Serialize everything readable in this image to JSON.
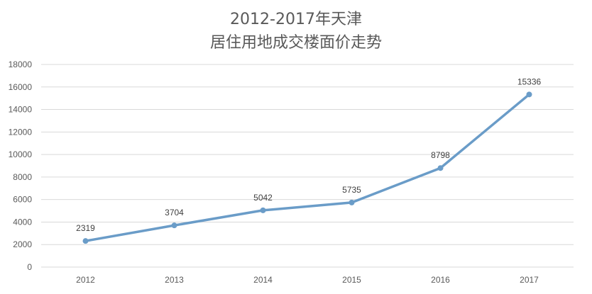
{
  "chart_data": {
    "type": "line",
    "title_lines": [
      "2012-2017年天津",
      "居住用地成交楼面价走势"
    ],
    "categories": [
      "2012",
      "2013",
      "2014",
      "2015",
      "2016",
      "2017"
    ],
    "series": [
      {
        "values": [
          2319,
          3704,
          5042,
          5735,
          8798,
          15336
        ],
        "color": "#6a9cc8"
      }
    ],
    "data_labels": [
      "2319",
      "3704",
      "5042",
      "5735",
      "8798",
      "15336"
    ],
    "ylim": [
      0,
      18000
    ],
    "y_ticks": [
      0,
      2000,
      4000,
      6000,
      8000,
      10000,
      12000,
      14000,
      16000,
      18000
    ],
    "grid": true,
    "legend": "none",
    "colors": {
      "grid": "#d9d9d9",
      "axis_text": "#595959",
      "title": "#595959"
    }
  }
}
